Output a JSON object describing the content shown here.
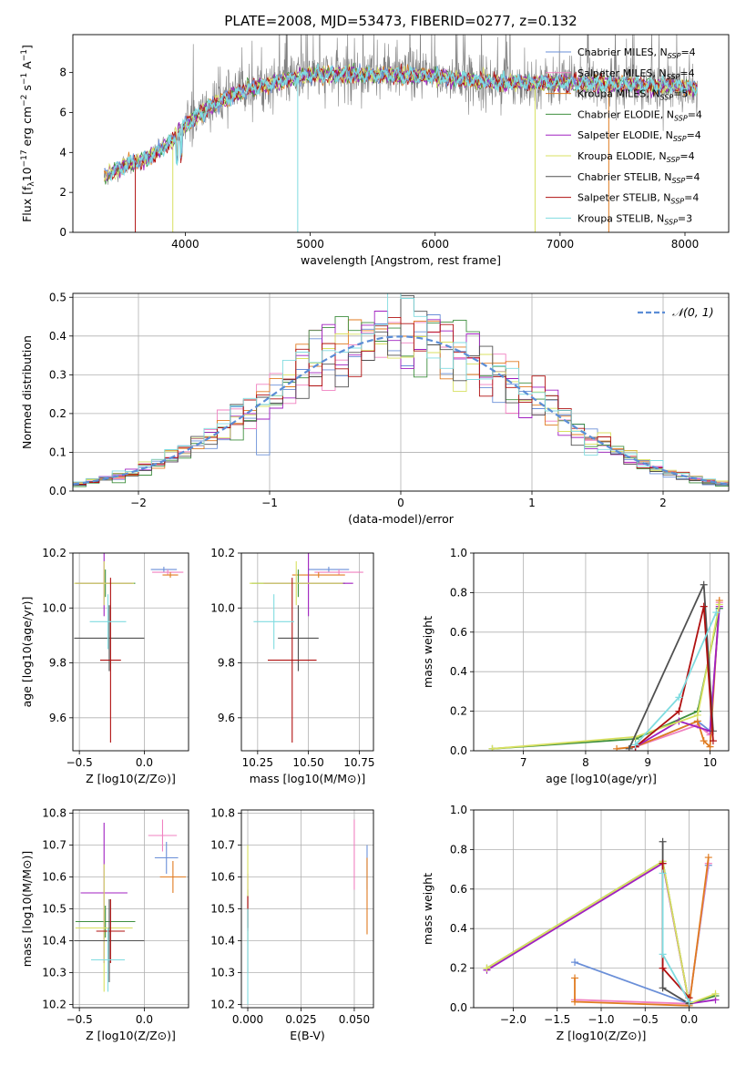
{
  "figure": {
    "title": "PLATE=2008, MJD=53473, FIBERID=0277, z=0.132"
  },
  "models": [
    {
      "key": "chab_miles",
      "label": "Chabrier MILES, N_SSP=4",
      "color": "#6a8fd8"
    },
    {
      "key": "salp_miles",
      "label": "Salpeter MILES, N_SSP=4",
      "color": "#f080c0"
    },
    {
      "key": "krou_miles",
      "label": "Kroupa MILES, N_SSP=5",
      "color": "#e07b20"
    },
    {
      "key": "chab_elodie",
      "label": "Chabrier ELODIE, N_SSP=4",
      "color": "#3f8f3f"
    },
    {
      "key": "salp_elodie",
      "label": "Salpeter ELODIE, N_SSP=4",
      "color": "#a020c0"
    },
    {
      "key": "krou_elodie",
      "label": "Kroupa ELODIE, N_SSP=4",
      "color": "#d8e060"
    },
    {
      "key": "chab_stelib",
      "label": "Chabrier STELIB, N_SSP=4",
      "color": "#505050"
    },
    {
      "key": "salp_stelib",
      "label": "Salpeter STELIB, N_SSP=4",
      "color": "#b01010"
    },
    {
      "key": "krou_stelib",
      "label": "Kroupa STELIB, N_SSP=3",
      "color": "#80dce0"
    }
  ],
  "data_color": "#7f7f7f",
  "chart_data": [
    {
      "id": "spectrum",
      "type": "line",
      "xlabel": "wavelength [Angstrom, rest frame]",
      "ylabel": "Flux [f_λ 10^-17 erg cm^-2 s^-1 A^-1]",
      "xlim": [
        3100,
        8350
      ],
      "ylim": [
        0,
        9.9
      ],
      "xticks": [
        4000,
        5000,
        6000,
        7000,
        8000
      ],
      "yticks": [
        0,
        2,
        4,
        6,
        8
      ],
      "continuum_x": [
        3350,
        3500,
        3700,
        3900,
        4000,
        4200,
        4500,
        4800,
        5000,
        5500,
        6000,
        6500,
        7000,
        7500,
        8000,
        8100
      ],
      "continuum_y": [
        2.8,
        3.3,
        3.7,
        4.6,
        5.4,
        6.3,
        7.2,
        7.6,
        7.9,
        7.9,
        7.8,
        7.5,
        7.5,
        7.4,
        7.3,
        7.2
      ]
    },
    {
      "id": "residuals",
      "type": "bar",
      "xlabel": "(data-model)/error",
      "ylabel": "Normed distribution",
      "legend": "𝒩(0, 1)",
      "xlim": [
        -2.5,
        2.5
      ],
      "ylim": [
        0,
        0.51
      ],
      "xticks": [
        -2,
        -1,
        0,
        1,
        2
      ],
      "yticks": [
        0.0,
        0.1,
        0.2,
        0.3,
        0.4,
        0.5
      ],
      "bin_edges": [
        -2.5,
        -2.4,
        -2.3,
        -2.2,
        -2.1,
        -2.0,
        -1.9,
        -1.8,
        -1.7,
        -1.6,
        -1.5,
        -1.4,
        -1.3,
        -1.2,
        -1.1,
        -1.0,
        -0.9,
        -0.8,
        -0.7,
        -0.6,
        -0.5,
        -0.4,
        -0.3,
        -0.2,
        -0.1,
        0.0,
        0.1,
        0.2,
        0.3,
        0.4,
        0.5,
        0.6,
        0.7,
        0.8,
        0.9,
        1.0,
        1.1,
        1.2,
        1.3,
        1.4,
        1.5,
        1.6,
        1.7,
        1.8,
        1.9,
        2.0,
        2.1,
        2.2,
        2.3,
        2.4,
        2.5
      ],
      "gaussian": {
        "mean": 0,
        "sigma": 1
      }
    },
    {
      "id": "age_vs_Z",
      "type": "scatter",
      "xlabel": "Z [log10(Z/Z⊙)]",
      "ylabel": "age  [log10(age/yr)]",
      "xlim": [
        -0.55,
        0.34
      ],
      "ylim": [
        9.48,
        10.2
      ],
      "xticks": [
        -0.5,
        0.0
      ],
      "yticks": [
        9.6,
        9.8,
        10.0,
        10.2
      ],
      "points": [
        {
          "model": "chab_miles",
          "x": 0.15,
          "y": 10.14,
          "xerr": 0.1,
          "yerr": 0.01
        },
        {
          "model": "salp_miles",
          "x": 0.18,
          "y": 10.13,
          "xerr": 0.12,
          "yerr": 0.01
        },
        {
          "model": "krou_miles",
          "x": 0.2,
          "y": 10.12,
          "xerr": 0.06,
          "yerr": 0.01
        },
        {
          "model": "chab_elodie",
          "x": -0.3,
          "y": 10.09,
          "xerr": 0.23,
          "yerr": 0.05
        },
        {
          "model": "salp_elodie",
          "x": -0.31,
          "y": 10.09,
          "xerr": 0.22,
          "yerr": 0.12
        },
        {
          "model": "krou_elodie",
          "x": -0.31,
          "y": 10.09,
          "xerr": 0.23,
          "yerr": 0.08
        },
        {
          "model": "chab_stelib",
          "x": -0.27,
          "y": 9.89,
          "xerr": 0.27,
          "yerr": 0.12
        },
        {
          "model": "salp_stelib",
          "x": -0.26,
          "y": 9.81,
          "xerr": 0.08,
          "yerr": 0.3
        },
        {
          "model": "krou_stelib",
          "x": -0.28,
          "y": 9.95,
          "xerr": 0.14,
          "yerr": 0.1
        }
      ]
    },
    {
      "id": "age_vs_mass",
      "type": "scatter",
      "xlabel": "mass [log10(M/M⊙)]",
      "ylabel": "",
      "xlim": [
        10.17,
        10.82
      ],
      "ylim": [
        9.48,
        10.2
      ],
      "xticks": [
        10.25,
        10.5,
        10.75
      ],
      "yticks": [
        9.6,
        9.8,
        10.0,
        10.2
      ],
      "points": [
        {
          "model": "chab_miles",
          "x": 10.6,
          "y": 10.14,
          "xerr": 0.1,
          "yerr": 0.01
        },
        {
          "model": "salp_miles",
          "x": 10.65,
          "y": 10.13,
          "xerr": 0.12,
          "yerr": 0.01
        },
        {
          "model": "krou_miles",
          "x": 10.55,
          "y": 10.12,
          "xerr": 0.13,
          "yerr": 0.01
        },
        {
          "model": "chab_elodie",
          "x": 10.45,
          "y": 10.09,
          "xerr": 0.23,
          "yerr": 0.05
        },
        {
          "model": "salp_elodie",
          "x": 10.5,
          "y": 10.09,
          "xerr": 0.22,
          "yerr": 0.12
        },
        {
          "model": "krou_elodie",
          "x": 10.44,
          "y": 10.09,
          "xerr": 0.23,
          "yerr": 0.08
        },
        {
          "model": "chab_stelib",
          "x": 10.45,
          "y": 9.89,
          "xerr": 0.1,
          "yerr": 0.12
        },
        {
          "model": "salp_stelib",
          "x": 10.42,
          "y": 9.81,
          "xerr": 0.12,
          "yerr": 0.3
        },
        {
          "model": "krou_stelib",
          "x": 10.33,
          "y": 9.95,
          "xerr": 0.1,
          "yerr": 0.1
        }
      ]
    },
    {
      "id": "mass_weight_vs_age",
      "type": "line",
      "xlabel": "age  [log10(age/yr)]",
      "ylabel": "mass weight",
      "xlim": [
        6.2,
        10.3
      ],
      "ylim": [
        0,
        1.0
      ],
      "xticks": [
        7,
        8,
        9,
        10
      ],
      "yticks": [
        0.0,
        0.2,
        0.4,
        0.6,
        0.8,
        1.0
      ],
      "series": [
        {
          "model": "chab_miles",
          "x": [
            8.8,
            9.8,
            10.0,
            10.15
          ],
          "y": [
            0.02,
            0.15,
            0.1,
            0.72
          ]
        },
        {
          "model": "salp_miles",
          "x": [
            8.8,
            9.8,
            10.0,
            10.15
          ],
          "y": [
            0.02,
            0.13,
            0.08,
            0.75
          ]
        },
        {
          "model": "krou_miles",
          "x": [
            8.5,
            8.8,
            9.8,
            9.9,
            10.0,
            10.15
          ],
          "y": [
            0.01,
            0.02,
            0.15,
            0.05,
            0.02,
            0.76
          ]
        },
        {
          "model": "chab_elodie",
          "x": [
            6.5,
            8.8,
            9.8,
            10.15
          ],
          "y": [
            0.01,
            0.06,
            0.2,
            0.72
          ]
        },
        {
          "model": "salp_elodie",
          "x": [
            8.8,
            9.5,
            10.0,
            10.15
          ],
          "y": [
            0.02,
            0.15,
            0.1,
            0.73
          ]
        },
        {
          "model": "krou_elodie",
          "x": [
            6.5,
            8.8,
            9.8,
            10.15
          ],
          "y": [
            0.01,
            0.07,
            0.18,
            0.74
          ]
        },
        {
          "model": "chab_stelib",
          "x": [
            8.7,
            9.9,
            10.05
          ],
          "y": [
            0.01,
            0.84,
            0.1
          ]
        },
        {
          "model": "salp_stelib",
          "x": [
            8.8,
            9.5,
            9.9,
            10.05
          ],
          "y": [
            0.02,
            0.2,
            0.73,
            0.05
          ]
        },
        {
          "model": "krou_stelib",
          "x": [
            8.8,
            9.5,
            10.1
          ],
          "y": [
            0.03,
            0.27,
            0.7
          ]
        }
      ]
    },
    {
      "id": "mass_vs_Z",
      "type": "scatter",
      "xlabel": "Z [log10(Z/Z⊙)]",
      "ylabel": "mass [log10(M/M⊙)]",
      "xlim": [
        -0.55,
        0.34
      ],
      "ylim": [
        10.19,
        10.81
      ],
      "xticks": [
        -0.5,
        0.0
      ],
      "yticks": [
        10.2,
        10.3,
        10.4,
        10.5,
        10.6,
        10.7,
        10.8
      ],
      "points": [
        {
          "model": "chab_miles",
          "x": 0.17,
          "y": 10.66,
          "xerr": 0.09,
          "yerr": 0.05
        },
        {
          "model": "salp_miles",
          "x": 0.14,
          "y": 10.73,
          "xerr": 0.11,
          "yerr": 0.05
        },
        {
          "model": "krou_miles",
          "x": 0.22,
          "y": 10.6,
          "xerr": 0.1,
          "yerr": 0.05
        },
        {
          "model": "chab_elodie",
          "x": -0.3,
          "y": 10.46,
          "xerr": 0.23,
          "yerr": 0.05
        },
        {
          "model": "salp_elodie",
          "x": -0.31,
          "y": 10.55,
          "xerr": 0.18,
          "yerr": 0.22
        },
        {
          "model": "krou_elodie",
          "x": -0.31,
          "y": 10.44,
          "xerr": 0.22,
          "yerr": 0.2
        },
        {
          "model": "chab_stelib",
          "x": -0.27,
          "y": 10.4,
          "xerr": 0.27,
          "yerr": 0.13
        },
        {
          "model": "salp_stelib",
          "x": -0.26,
          "y": 10.43,
          "xerr": 0.11,
          "yerr": 0.1
        },
        {
          "model": "krou_stelib",
          "x": -0.28,
          "y": 10.34,
          "xerr": 0.13,
          "yerr": 0.1
        }
      ]
    },
    {
      "id": "mass_vs_ebv",
      "type": "scatter",
      "xlabel": "E(B-V)",
      "ylabel": "",
      "xlim": [
        -0.003,
        0.059
      ],
      "ylim": [
        10.19,
        10.81
      ],
      "xticks": [
        0.0,
        0.025,
        0.05
      ],
      "yticks": [
        10.2,
        10.3,
        10.4,
        10.5,
        10.6,
        10.7,
        10.8
      ],
      "points": [
        {
          "model": "chab_miles",
          "x": 0.056,
          "y": 10.63,
          "xerr": 0,
          "yerr": 0.07
        },
        {
          "model": "salp_miles",
          "x": 0.05,
          "y": 10.67,
          "xerr": 0,
          "yerr": 0.11
        },
        {
          "model": "krou_miles",
          "x": 0.056,
          "y": 10.54,
          "xerr": 0,
          "yerr": 0.12
        },
        {
          "model": "chab_elodie",
          "x": 0.0,
          "y": 10.5,
          "xerr": 0,
          "yerr": 0.06
        },
        {
          "model": "salp_elodie",
          "x": 0.0,
          "y": 10.52,
          "xerr": 0,
          "yerr": 0.09
        },
        {
          "model": "krou_elodie",
          "x": 0.0,
          "y": 10.55,
          "xerr": 0,
          "yerr": 0.15
        },
        {
          "model": "chab_stelib",
          "x": 0.0,
          "y": 10.4,
          "xerr": 0,
          "yerr": 0.1
        },
        {
          "model": "salp_stelib",
          "x": 0.0,
          "y": 10.49,
          "xerr": 0,
          "yerr": 0.05
        },
        {
          "model": "krou_stelib",
          "x": 0.0,
          "y": 10.35,
          "xerr": 0,
          "yerr": 0.15
        }
      ]
    },
    {
      "id": "mass_weight_vs_Z",
      "type": "line",
      "xlabel": "Z [log10(Z/Z⊙)]",
      "ylabel": "mass weight",
      "xlim": [
        -2.45,
        0.45
      ],
      "ylim": [
        0,
        1.0
      ],
      "xticks": [
        -2.0,
        -1.5,
        -1.0,
        -0.5,
        0.0
      ],
      "yticks": [
        0.0,
        0.2,
        0.4,
        0.6,
        0.8,
        1.0
      ],
      "series": [
        {
          "model": "chab_miles",
          "x": [
            -1.3,
            0.0,
            0.22
          ],
          "y": [
            0.23,
            0.02,
            0.72
          ]
        },
        {
          "model": "salp_miles",
          "x": [
            -1.3,
            0.0,
            0.22
          ],
          "y": [
            0.04,
            0.02,
            0.73
          ]
        },
        {
          "model": "krou_miles",
          "x": [
            -1.3,
            -1.3,
            0.0,
            0.22
          ],
          "y": [
            0.15,
            0.03,
            0.01,
            0.76
          ]
        },
        {
          "model": "chab_elodie",
          "x": [
            -2.3,
            -0.3,
            0.0,
            0.3
          ],
          "y": [
            0.2,
            0.74,
            0.02,
            0.06
          ]
        },
        {
          "model": "salp_elodie",
          "x": [
            -2.3,
            -0.3,
            0.0,
            0.3
          ],
          "y": [
            0.19,
            0.73,
            0.02,
            0.04
          ]
        },
        {
          "model": "krou_elodie",
          "x": [
            -2.3,
            -0.3,
            0.0,
            0.3
          ],
          "y": [
            0.2,
            0.74,
            0.02,
            0.07
          ]
        },
        {
          "model": "chab_stelib",
          "x": [
            -0.3,
            -0.3,
            0.0
          ],
          "y": [
            0.84,
            0.1,
            0.02
          ]
        },
        {
          "model": "salp_stelib",
          "x": [
            -0.3,
            -0.3,
            0.0
          ],
          "y": [
            0.73,
            0.2,
            0.05
          ]
        },
        {
          "model": "krou_stelib",
          "x": [
            -0.3,
            -0.3,
            0.0
          ],
          "y": [
            0.68,
            0.27,
            0.03
          ]
        }
      ]
    }
  ]
}
